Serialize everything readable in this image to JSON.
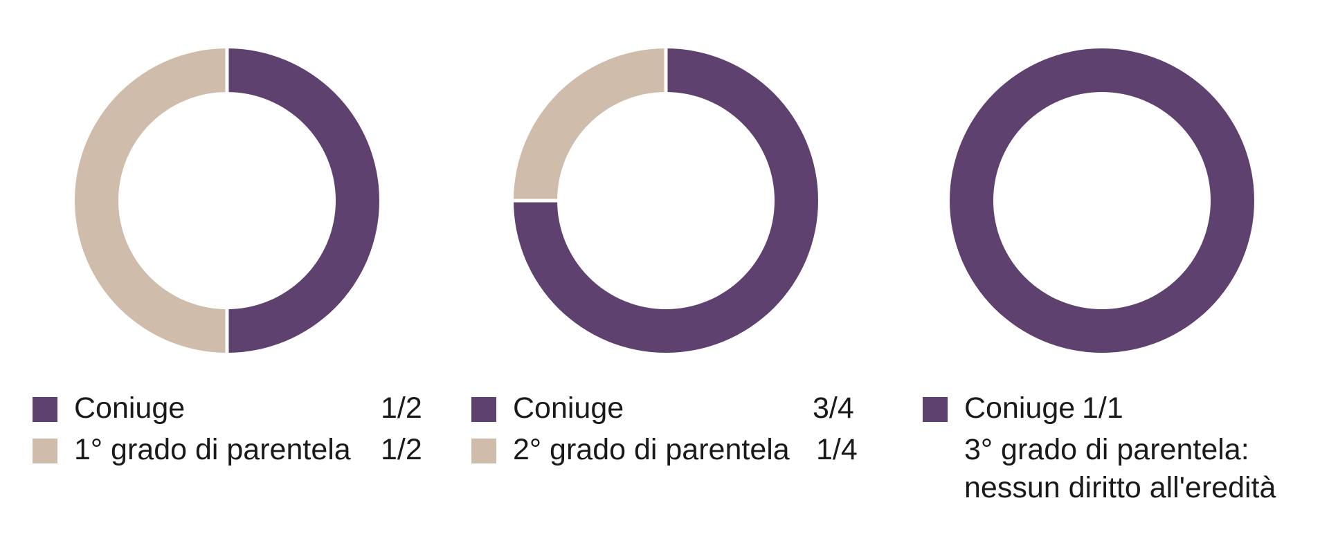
{
  "colors": {
    "spouse": "#5f416f",
    "relatives": "#cfbcaa",
    "gap": "#ffffff"
  },
  "chart_data": [
    {
      "type": "pie",
      "slices": [
        {
          "label": "Coniuge",
          "share": "1/2",
          "value": 0.5,
          "color": "#5f416f"
        },
        {
          "label": "1° grado di parentela",
          "share": "1/2",
          "value": 0.5,
          "color": "#cfbcaa"
        }
      ]
    },
    {
      "type": "pie",
      "slices": [
        {
          "label": "Coniuge",
          "share": "3/4",
          "value": 0.75,
          "color": "#5f416f"
        },
        {
          "label": "2° grado di parentela",
          "share": "1/4",
          "value": 0.25,
          "color": "#cfbcaa"
        }
      ]
    },
    {
      "type": "pie",
      "slices": [
        {
          "label": "Coniuge",
          "share": "1/1",
          "value": 1.0,
          "color": "#5f416f"
        }
      ],
      "note_lines": [
        "3° grado di parentela:",
        "nessun diritto all'eredità"
      ]
    }
  ]
}
